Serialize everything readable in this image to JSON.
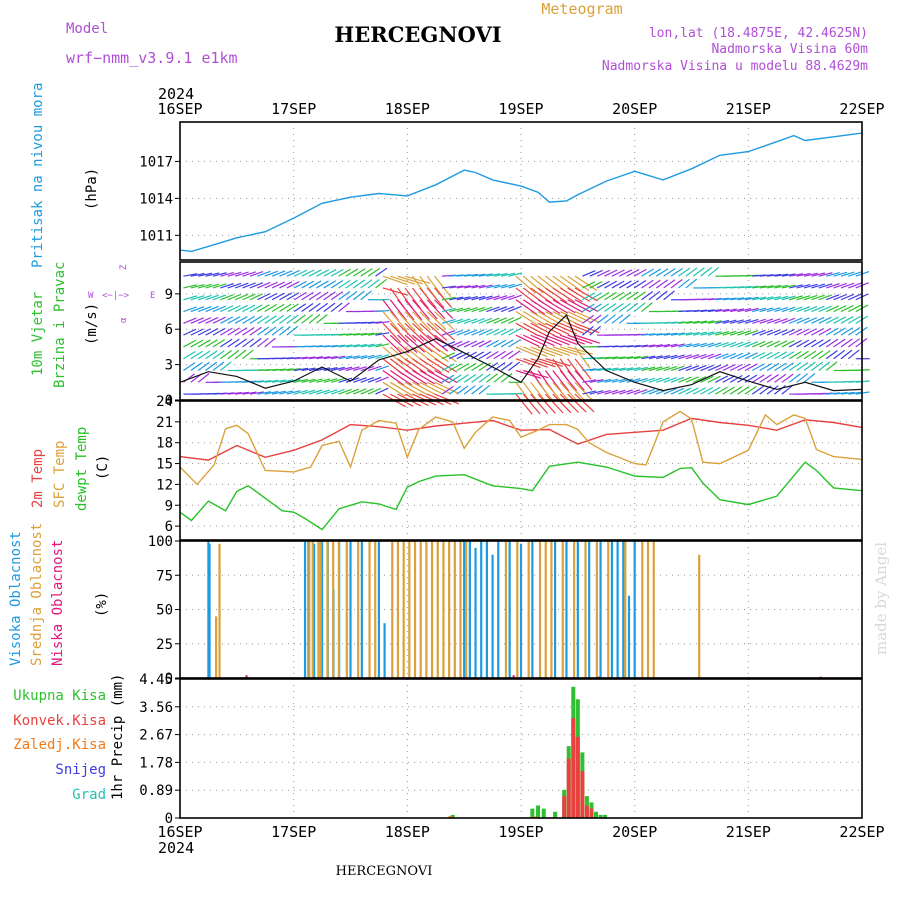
{
  "header": {
    "model_label": "Model",
    "model_value": "wrf−nmm_v3.9.1  e1km",
    "title": "HERCEGNOVI",
    "subtitle": "Meteogram",
    "lonlat": "lon,lat (18.4875E, 42.4625N)",
    "elevation": "Nadmorska Visina 60m",
    "model_elevation": "Nadmorska Visina u modelu 88.4629m",
    "year_top": "2024",
    "year_bottom": "2024",
    "footer_title": "HERCEGNOVI",
    "watermark": "made by Angel"
  },
  "colors": {
    "pressure": "#1e9be0",
    "t2m": "#e8423f",
    "sfc": "#dba13b",
    "dewpt": "#27c227",
    "cloud_high": "#1e9be0",
    "cloud_mid": "#dba13b",
    "cloud_low": "#e0197a",
    "rain_total": "#2fbf2f",
    "rain_conv": "#e8423f",
    "rain_frozen": "#f07a1a",
    "snow": "#3d3de0",
    "hail": "#22c4b0",
    "purple": "#b04fd6",
    "wind_line": "#111111"
  },
  "panel_labels": {
    "pressure": [
      "Pritisak na nivou mora",
      "(hPa)"
    ],
    "wind": [
      "10m Vjetar",
      "Brzina i Pravac",
      "(m/s)"
    ],
    "compass": {
      "n": "Z",
      "s": "α",
      "w": "W",
      "e": "E",
      "arrows": "<−|−>"
    },
    "temp": [
      "2m Temp",
      "SFC Temp",
      "dewpt Temp",
      "(C)"
    ],
    "cloud": [
      "Visoka Oblacnost",
      "Srednja Oblacnost",
      "Niska Oblacnost",
      "(%)"
    ],
    "precip_unit": "1hr Precip (mm)",
    "precip_legend": [
      "Ukupna Kisa",
      "Konvek.Kisa",
      "Zaledj.Kisa",
      "Snijeg",
      "Grad"
    ]
  },
  "chart_data": [
    {
      "type": "line",
      "name": "pressure",
      "x_ticks": [
        "16SEP",
        "17SEP",
        "18SEP",
        "19SEP",
        "20SEP",
        "21SEP",
        "22SEP"
      ],
      "y_ticks": [
        "1011",
        "1014",
        "1017"
      ],
      "ylim": [
        1009,
        1020.2
      ],
      "grid": true,
      "series": [
        {
          "name": "Pritisak na nivou mora",
          "x": [
            0,
            0.1,
            0.25,
            0.5,
            0.75,
            1,
            1.25,
            1.5,
            1.75,
            2,
            2.25,
            2.5,
            2.6,
            2.75,
            3,
            3.15,
            3.25,
            3.4,
            3.5,
            3.75,
            4,
            4.25,
            4.5,
            4.75,
            5,
            5.25,
            5.4,
            5.5,
            5.75,
            6
          ],
          "values": [
            1009.8,
            1009.7,
            1010.1,
            1010.8,
            1011.3,
            1012.4,
            1013.6,
            1014.1,
            1014.4,
            1014.2,
            1015.1,
            1016.3,
            1016.1,
            1015.5,
            1015.0,
            1014.5,
            1013.7,
            1013.8,
            1014.3,
            1015.4,
            1016.2,
            1015.5,
            1016.4,
            1017.5,
            1017.8,
            1018.6,
            1019.1,
            1018.7,
            1019.0,
            1019.3
          ]
        }
      ]
    },
    {
      "type": "line",
      "name": "wind",
      "y_ticks": [
        "0",
        "3",
        "6",
        "9"
      ],
      "ylim": [
        0,
        11.7
      ],
      "grid": true,
      "series": [
        {
          "name": "Brzina i Pravac",
          "x": [
            0,
            0.25,
            0.5,
            0.75,
            1,
            1.25,
            1.5,
            1.75,
            2,
            2.25,
            2.5,
            2.75,
            3,
            3.15,
            3.25,
            3.4,
            3.5,
            3.75,
            4,
            4.25,
            4.5,
            4.75,
            5,
            5.25,
            5.5,
            5.75,
            6
          ],
          "values": [
            1.5,
            2.4,
            2.0,
            1.0,
            1.6,
            2.8,
            1.6,
            3.4,
            4.1,
            5.2,
            4.0,
            2.8,
            1.5,
            3.5,
            5.8,
            7.2,
            4.8,
            2.5,
            1.5,
            0.8,
            1.3,
            2.4,
            1.6,
            0.9,
            1.5,
            0.8,
            0.9
          ]
        }
      ]
    },
    {
      "type": "line",
      "name": "temperature",
      "y_ticks": [
        "6",
        "9",
        "12",
        "15",
        "18",
        "21",
        "24"
      ],
      "ylim": [
        4,
        24
      ],
      "grid": true,
      "series": [
        {
          "name": "2m Temp",
          "x": [
            0,
            0.25,
            0.5,
            0.75,
            1,
            1.25,
            1.5,
            1.75,
            2,
            2.25,
            2.5,
            2.75,
            3,
            3.25,
            3.5,
            3.75,
            4,
            4.25,
            4.5,
            4.75,
            5,
            5.25,
            5.5,
            5.75,
            6
          ],
          "values": [
            16.0,
            15.5,
            17.6,
            15.9,
            16.9,
            18.4,
            20.6,
            20.3,
            19.8,
            20.4,
            20.8,
            21.2,
            19.8,
            19.9,
            17.8,
            19.2,
            19.5,
            19.8,
            21.5,
            20.9,
            20.5,
            19.8,
            21.3,
            20.9,
            20.2
          ]
        },
        {
          "name": "SFC Temp",
          "x": [
            0,
            0.15,
            0.3,
            0.4,
            0.5,
            0.6,
            0.75,
            1,
            1.15,
            1.25,
            1.4,
            1.5,
            1.6,
            1.75,
            1.9,
            2,
            2.1,
            2.25,
            2.4,
            2.5,
            2.6,
            2.75,
            2.9,
            3,
            3.15,
            3.25,
            3.4,
            3.5,
            3.6,
            3.75,
            4,
            4.1,
            4.25,
            4.4,
            4.5,
            4.6,
            4.75,
            5,
            5.15,
            5.25,
            5.4,
            5.5,
            5.6,
            5.75,
            6
          ],
          "values": [
            14.5,
            12.0,
            14.8,
            20.0,
            20.5,
            19.3,
            14.0,
            13.8,
            14.5,
            17.6,
            18.2,
            14.5,
            19.8,
            21.2,
            20.8,
            15.9,
            19.9,
            21.7,
            21.0,
            17.2,
            19.5,
            21.7,
            21.2,
            18.8,
            19.8,
            20.6,
            20.6,
            19.9,
            18.0,
            16.6,
            15.0,
            14.8,
            21.0,
            22.5,
            21.4,
            15.2,
            15.0,
            16.9,
            22.0,
            20.6,
            22.0,
            21.5,
            17.0,
            16.0,
            15.6
          ]
        },
        {
          "name": "dewpt Temp",
          "x": [
            0,
            0.1,
            0.25,
            0.4,
            0.5,
            0.6,
            0.75,
            0.9,
            1,
            1.1,
            1.25,
            1.4,
            1.5,
            1.6,
            1.75,
            1.9,
            2,
            2.1,
            2.25,
            2.5,
            2.75,
            3,
            3.1,
            3.25,
            3.5,
            3.75,
            4,
            4.25,
            4.4,
            4.5,
            4.6,
            4.75,
            5,
            5.25,
            5.5,
            5.6,
            5.75,
            6
          ],
          "values": [
            8.0,
            6.8,
            9.6,
            8.2,
            11.0,
            11.8,
            10.0,
            8.2,
            8.0,
            7.1,
            5.5,
            8.5,
            9.0,
            9.5,
            9.2,
            8.4,
            11.6,
            12.4,
            13.2,
            13.4,
            11.8,
            11.4,
            11.1,
            14.6,
            15.2,
            14.5,
            13.2,
            13.0,
            14.3,
            14.4,
            12.2,
            9.8,
            9.1,
            10.3,
            15.2,
            14.0,
            11.5,
            11.1
          ]
        }
      ]
    },
    {
      "type": "bar",
      "name": "cloud",
      "y_ticks": [
        "0",
        "25",
        "50",
        "75",
        "100"
      ],
      "ylim": [
        0,
        100
      ],
      "grid": true,
      "series": [
        {
          "name": "Visoka Oblacnost",
          "x": [
            0.25,
            0.26,
            1.1,
            1.13,
            1.18,
            1.25,
            1.3,
            1.35,
            1.4,
            1.5,
            1.6,
            1.75,
            1.8,
            2.5,
            2.55,
            2.6,
            2.65,
            2.7,
            2.75,
            2.8,
            2.9,
            3.0,
            3.1,
            3.3,
            3.4,
            3.5,
            3.6,
            3.7,
            3.8,
            3.85,
            3.9,
            3.95,
            4.0
          ],
          "values": [
            100,
            98,
            100,
            100,
            98,
            100,
            100,
            65,
            100,
            100,
            100,
            100,
            40,
            100,
            100,
            95,
            100,
            100,
            90,
            100,
            100,
            98,
            100,
            100,
            100,
            100,
            100,
            100,
            100,
            100,
            100,
            60,
            100
          ]
        },
        {
          "name": "Srednja Oblacnost",
          "x": [
            0.3,
            0.33,
            1.12,
            1.15,
            1.2,
            1.22,
            1.28,
            1.33,
            1.38,
            1.45,
            1.55,
            1.65,
            1.7,
            1.85,
            1.9,
            1.95,
            2.0,
            2.05,
            2.1,
            2.15,
            2.2,
            2.25,
            2.3,
            2.35,
            2.4,
            2.45,
            2.5,
            2.85,
            2.95,
            3.05,
            3.15,
            3.2,
            3.25,
            3.35,
            3.45,
            3.55,
            3.65,
            3.75,
            3.9,
            4.05,
            4.1,
            4.15,
            4.55
          ],
          "values": [
            45,
            98,
            100,
            100,
            100,
            100,
            100,
            100,
            100,
            100,
            100,
            100,
            100,
            100,
            100,
            100,
            100,
            100,
            100,
            100,
            100,
            100,
            100,
            100,
            100,
            100,
            100,
            100,
            100,
            100,
            100,
            100,
            100,
            100,
            100,
            100,
            100,
            100,
            100,
            100,
            100,
            100,
            90
          ]
        },
        {
          "name": "Niska Oblacnost",
          "x": [
            0.55,
            2.9,
            3.65,
            5.6
          ],
          "values": [
            2,
            2,
            1,
            1
          ]
        }
      ]
    },
    {
      "type": "bar",
      "name": "precipitation",
      "y_ticks": [
        "0",
        "0.89",
        "1.78",
        "2.67",
        "3.56",
        "4.45"
      ],
      "ylim": [
        0,
        4.45
      ],
      "grid": true,
      "series": [
        {
          "name": "Ukupna Kisa",
          "x": [
            2.4,
            3.1,
            3.15,
            3.2,
            3.3,
            3.38,
            3.42,
            3.46,
            3.5,
            3.54,
            3.58,
            3.62,
            3.66,
            3.7,
            3.74
          ],
          "values": [
            0.1,
            0.3,
            0.4,
            0.3,
            0.2,
            0.9,
            2.3,
            4.2,
            3.8,
            2.1,
            0.7,
            0.5,
            0.2,
            0.1,
            0.1
          ]
        },
        {
          "name": "Konvek.Kisa",
          "x": [
            3.38,
            3.42,
            3.46,
            3.5,
            3.54,
            3.58,
            3.62
          ],
          "values": [
            0.7,
            1.9,
            3.2,
            2.6,
            1.5,
            0.4,
            0.3
          ]
        },
        {
          "name": "Zaledj.Kisa",
          "x": [
            2.38,
            3.12
          ],
          "values": [
            0.06,
            0.05
          ]
        },
        {
          "name": "Snijeg",
          "x": [],
          "values": []
        },
        {
          "name": "Grad",
          "x": [],
          "values": []
        }
      ]
    }
  ]
}
